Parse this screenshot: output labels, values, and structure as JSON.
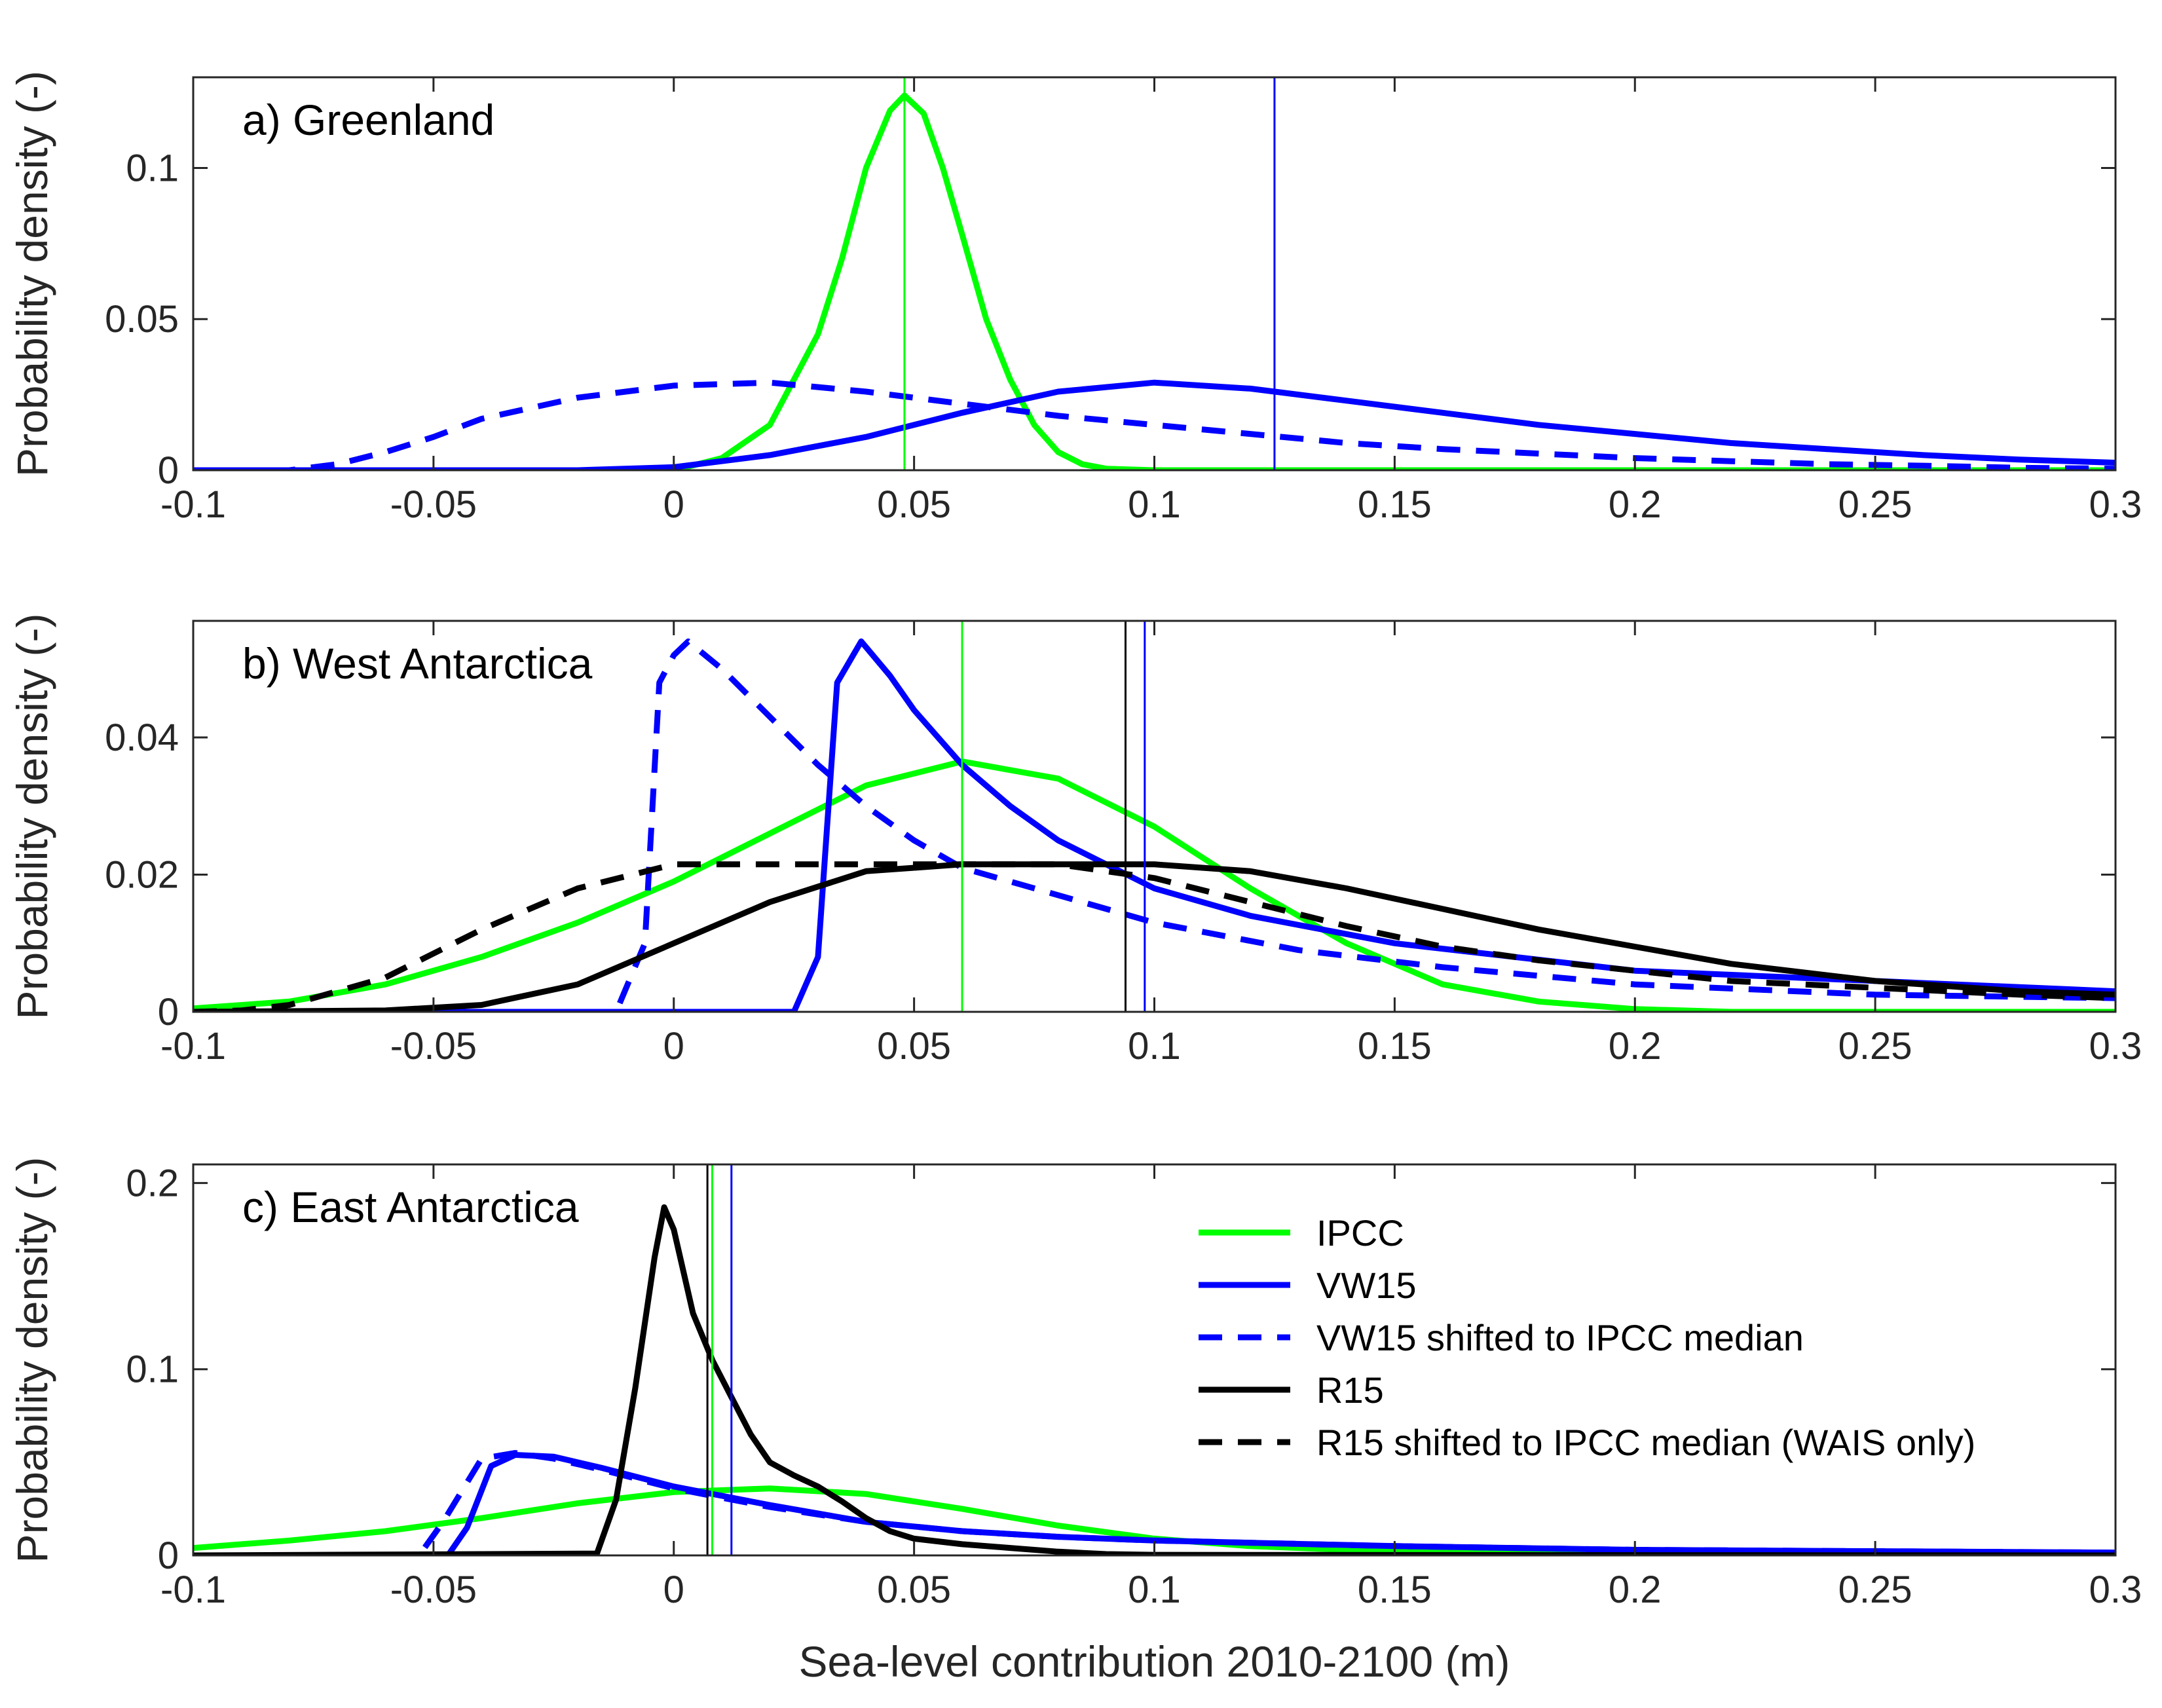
{
  "chart_data": [
    {
      "type": "line",
      "title": "a) Greenland",
      "xlabel": "",
      "ylabel": "Probability density (-)",
      "xlim": [
        -0.1,
        0.3
      ],
      "ylim": [
        0,
        0.13
      ],
      "xticks": [
        "-0.1",
        "-0.05",
        "0",
        "0.05",
        "0.1",
        "0.15",
        "0.2",
        "0.25",
        "0.3"
      ],
      "yticks": [
        [
          "0",
          0
        ],
        [
          "0.05",
          0.05
        ],
        [
          "0.1",
          0.1
        ]
      ],
      "series": [
        {
          "name": "IPCC",
          "color": "#00ff00",
          "style": "solid",
          "x": [
            -0.1,
            0.0,
            0.01,
            0.02,
            0.03,
            0.035,
            0.04,
            0.045,
            0.048,
            0.052,
            0.056,
            0.06,
            0.065,
            0.07,
            0.075,
            0.08,
            0.085,
            0.09,
            0.1,
            0.3
          ],
          "y": [
            0,
            0,
            0.004,
            0.015,
            0.045,
            0.07,
            0.1,
            0.119,
            0.124,
            0.118,
            0.1,
            0.078,
            0.05,
            0.03,
            0.015,
            0.006,
            0.002,
            0.0005,
            0,
            0
          ]
        },
        {
          "name": "VW15",
          "color": "#0000ff",
          "style": "solid",
          "x": [
            -0.1,
            -0.02,
            0.0,
            0.02,
            0.04,
            0.06,
            0.08,
            0.1,
            0.12,
            0.14,
            0.16,
            0.18,
            0.2,
            0.22,
            0.24,
            0.26,
            0.28,
            0.3
          ],
          "y": [
            0,
            0,
            0.001,
            0.005,
            0.011,
            0.019,
            0.026,
            0.029,
            0.027,
            0.023,
            0.019,
            0.015,
            0.012,
            0.009,
            0.007,
            0.005,
            0.0035,
            0.0025
          ]
        },
        {
          "name": "VW15 shifted to IPCC median",
          "color": "#0000ff",
          "style": "dashed",
          "x": [
            -0.1,
            -0.08,
            -0.07,
            -0.06,
            -0.05,
            -0.04,
            -0.02,
            0.0,
            0.02,
            0.04,
            0.06,
            0.08,
            0.1,
            0.12,
            0.14,
            0.16,
            0.18,
            0.2,
            0.22,
            0.24,
            0.26,
            0.28,
            0.3
          ],
          "y": [
            0,
            0,
            0.002,
            0.006,
            0.011,
            0.017,
            0.024,
            0.028,
            0.029,
            0.026,
            0.022,
            0.018,
            0.015,
            0.012,
            0.009,
            0.007,
            0.0055,
            0.004,
            0.003,
            0.002,
            0.0015,
            0.0008,
            0.0005
          ]
        }
      ],
      "vlines": [
        {
          "x": 0.048,
          "color": "#00ff00"
        },
        {
          "x": 0.125,
          "color": "#0000ff"
        }
      ]
    },
    {
      "type": "line",
      "title": "b) West Antarctica",
      "xlabel": "",
      "ylabel": "Probability density (-)",
      "xlim": [
        -0.1,
        0.3
      ],
      "ylim": [
        0,
        0.057
      ],
      "xticks": [
        "-0.1",
        "-0.05",
        "0",
        "0.05",
        "0.1",
        "0.15",
        "0.2",
        "0.25",
        "0.3"
      ],
      "yticks": [
        [
          "0",
          0
        ],
        [
          "0.02",
          0.02
        ],
        [
          "0.04",
          0.04
        ]
      ],
      "series": [
        {
          "name": "IPCC",
          "color": "#00ff00",
          "style": "solid",
          "x": [
            -0.1,
            -0.08,
            -0.06,
            -0.04,
            -0.02,
            0.0,
            0.02,
            0.04,
            0.06,
            0.08,
            0.1,
            0.12,
            0.14,
            0.16,
            0.18,
            0.2,
            0.22,
            0.3
          ],
          "y": [
            0.0005,
            0.0015,
            0.004,
            0.008,
            0.013,
            0.019,
            0.026,
            0.033,
            0.0365,
            0.034,
            0.027,
            0.018,
            0.01,
            0.004,
            0.0015,
            0.0004,
            0,
            0
          ]
        },
        {
          "name": "VW15",
          "color": "#0000ff",
          "style": "solid",
          "x": [
            -0.1,
            0.025,
            0.03,
            0.034,
            0.039,
            0.045,
            0.05,
            0.06,
            0.07,
            0.08,
            0.1,
            0.12,
            0.15,
            0.2,
            0.25,
            0.3
          ],
          "y": [
            0,
            0,
            0.008,
            0.048,
            0.054,
            0.049,
            0.044,
            0.036,
            0.03,
            0.025,
            0.018,
            0.014,
            0.01,
            0.006,
            0.0045,
            0.003
          ]
        },
        {
          "name": "VW15 shifted to IPCC median",
          "color": "#0000ff",
          "style": "dashed",
          "x": [
            -0.1,
            -0.012,
            -0.006,
            -0.003,
            0.0,
            0.003,
            0.01,
            0.02,
            0.03,
            0.04,
            0.05,
            0.06,
            0.08,
            0.1,
            0.13,
            0.16,
            0.2,
            0.25,
            0.3
          ],
          "y": [
            0,
            0,
            0.01,
            0.048,
            0.052,
            0.054,
            0.05,
            0.043,
            0.036,
            0.03,
            0.025,
            0.021,
            0.017,
            0.013,
            0.009,
            0.0065,
            0.004,
            0.0025,
            0.002
          ]
        },
        {
          "name": "R15",
          "color": "#000000",
          "style": "solid",
          "x": [
            -0.1,
            -0.06,
            -0.04,
            -0.02,
            0.0,
            0.02,
            0.04,
            0.06,
            0.08,
            0.1,
            0.12,
            0.14,
            0.16,
            0.18,
            0.2,
            0.22,
            0.25,
            0.28,
            0.3
          ],
          "y": [
            0,
            0.0002,
            0.001,
            0.004,
            0.01,
            0.016,
            0.0205,
            0.0215,
            0.0215,
            0.0215,
            0.0205,
            0.018,
            0.015,
            0.012,
            0.0095,
            0.007,
            0.0045,
            0.003,
            0.0025
          ]
        },
        {
          "name": "R15 shifted to IPCC median (WAIS only)",
          "color": "#000000",
          "style": "dashed",
          "x": [
            -0.1,
            -0.09,
            -0.08,
            -0.06,
            -0.04,
            -0.02,
            0.0,
            0.02,
            0.04,
            0.06,
            0.08,
            0.1,
            0.12,
            0.14,
            0.16,
            0.18,
            0.2,
            0.22,
            0.25,
            0.28,
            0.3
          ],
          "y": [
            0,
            0.0002,
            0.001,
            0.005,
            0.012,
            0.018,
            0.0215,
            0.0215,
            0.0215,
            0.0215,
            0.0215,
            0.0195,
            0.016,
            0.0125,
            0.0095,
            0.0075,
            0.006,
            0.0045,
            0.0035,
            0.0025,
            0.002
          ]
        }
      ],
      "vlines": [
        {
          "x": 0.06,
          "color": "#00ff00"
        },
        {
          "x": 0.094,
          "color": "#000000"
        },
        {
          "x": 0.098,
          "color": "#0000ff"
        }
      ]
    },
    {
      "type": "line",
      "title": "c) East Antarctica",
      "xlabel": "Sea-level contribution 2010-2100 (m)",
      "ylabel": "Probability density (-)",
      "xlim": [
        -0.1,
        0.3
      ],
      "ylim": [
        0,
        0.21
      ],
      "xticks": [
        "-0.1",
        "-0.05",
        "0",
        "0.05",
        "0.1",
        "0.15",
        "0.2",
        "0.25",
        "0.3"
      ],
      "yticks": [
        [
          "0",
          0
        ],
        [
          "0.1",
          0.1
        ],
        [
          "0.2",
          0.2
        ]
      ],
      "series": [
        {
          "name": "IPCC",
          "color": "#00ff00",
          "style": "solid",
          "x": [
            -0.1,
            -0.08,
            -0.06,
            -0.04,
            -0.02,
            0.0,
            0.02,
            0.04,
            0.06,
            0.08,
            0.1,
            0.12,
            0.15,
            0.2,
            0.3
          ],
          "y": [
            0.004,
            0.008,
            0.013,
            0.02,
            0.028,
            0.034,
            0.036,
            0.033,
            0.025,
            0.016,
            0.009,
            0.005,
            0.002,
            0.0004,
            0
          ]
        },
        {
          "name": "VW15",
          "color": "#0000ff",
          "style": "solid",
          "x": [
            -0.1,
            -0.047,
            -0.043,
            -0.038,
            -0.033,
            -0.025,
            -0.015,
            0.0,
            0.02,
            0.04,
            0.06,
            0.08,
            0.1,
            0.15,
            0.2,
            0.3
          ],
          "y": [
            0,
            0,
            0.015,
            0.048,
            0.054,
            0.053,
            0.047,
            0.037,
            0.027,
            0.018,
            0.013,
            0.01,
            0.008,
            0.005,
            0.003,
            0.0015
          ]
        },
        {
          "name": "VW15 shifted to IPCC median",
          "color": "#0000ff",
          "style": "dashed",
          "x": [
            -0.1,
            -0.053,
            -0.048,
            -0.04,
            -0.033,
            -0.025,
            -0.015,
            0.0,
            0.02,
            0.04,
            0.06,
            0.08,
            0.1,
            0.15,
            0.2,
            0.3
          ],
          "y": [
            0,
            0,
            0.018,
            0.052,
            0.055,
            0.052,
            0.046,
            0.036,
            0.026,
            0.018,
            0.013,
            0.01,
            0.008,
            0.005,
            0.003,
            0.0015
          ]
        },
        {
          "name": "R15",
          "color": "#000000",
          "style": "solid",
          "x": [
            -0.1,
            -0.016,
            -0.012,
            -0.008,
            -0.004,
            -0.002,
            0.0,
            0.004,
            0.008,
            0.012,
            0.016,
            0.02,
            0.025,
            0.03,
            0.035,
            0.04,
            0.045,
            0.05,
            0.06,
            0.07,
            0.08,
            0.09,
            0.1,
            0.3
          ],
          "y": [
            0,
            0.001,
            0.03,
            0.09,
            0.16,
            0.187,
            0.175,
            0.13,
            0.105,
            0.085,
            0.065,
            0.05,
            0.043,
            0.037,
            0.029,
            0.02,
            0.013,
            0.009,
            0.006,
            0.004,
            0.002,
            0.0007,
            0.0003,
            0
          ]
        }
      ],
      "vlines": [
        {
          "x": 0.007,
          "color": "#000000"
        },
        {
          "x": 0.008,
          "color": "#00ff00"
        },
        {
          "x": 0.012,
          "color": "#0000ff"
        }
      ],
      "legend": {
        "position": "top-right",
        "entries": [
          {
            "label": "IPCC",
            "color": "#00ff00",
            "style": "solid"
          },
          {
            "label": "VW15",
            "color": "#0000ff",
            "style": "solid"
          },
          {
            "label": "VW15 shifted to IPCC median",
            "color": "#0000ff",
            "style": "dashed"
          },
          {
            "label": "R15",
            "color": "#000000",
            "style": "solid"
          },
          {
            "label": "R15 shifted to IPCC median (WAIS only)",
            "color": "#000000",
            "style": "dashed"
          }
        ]
      }
    }
  ]
}
